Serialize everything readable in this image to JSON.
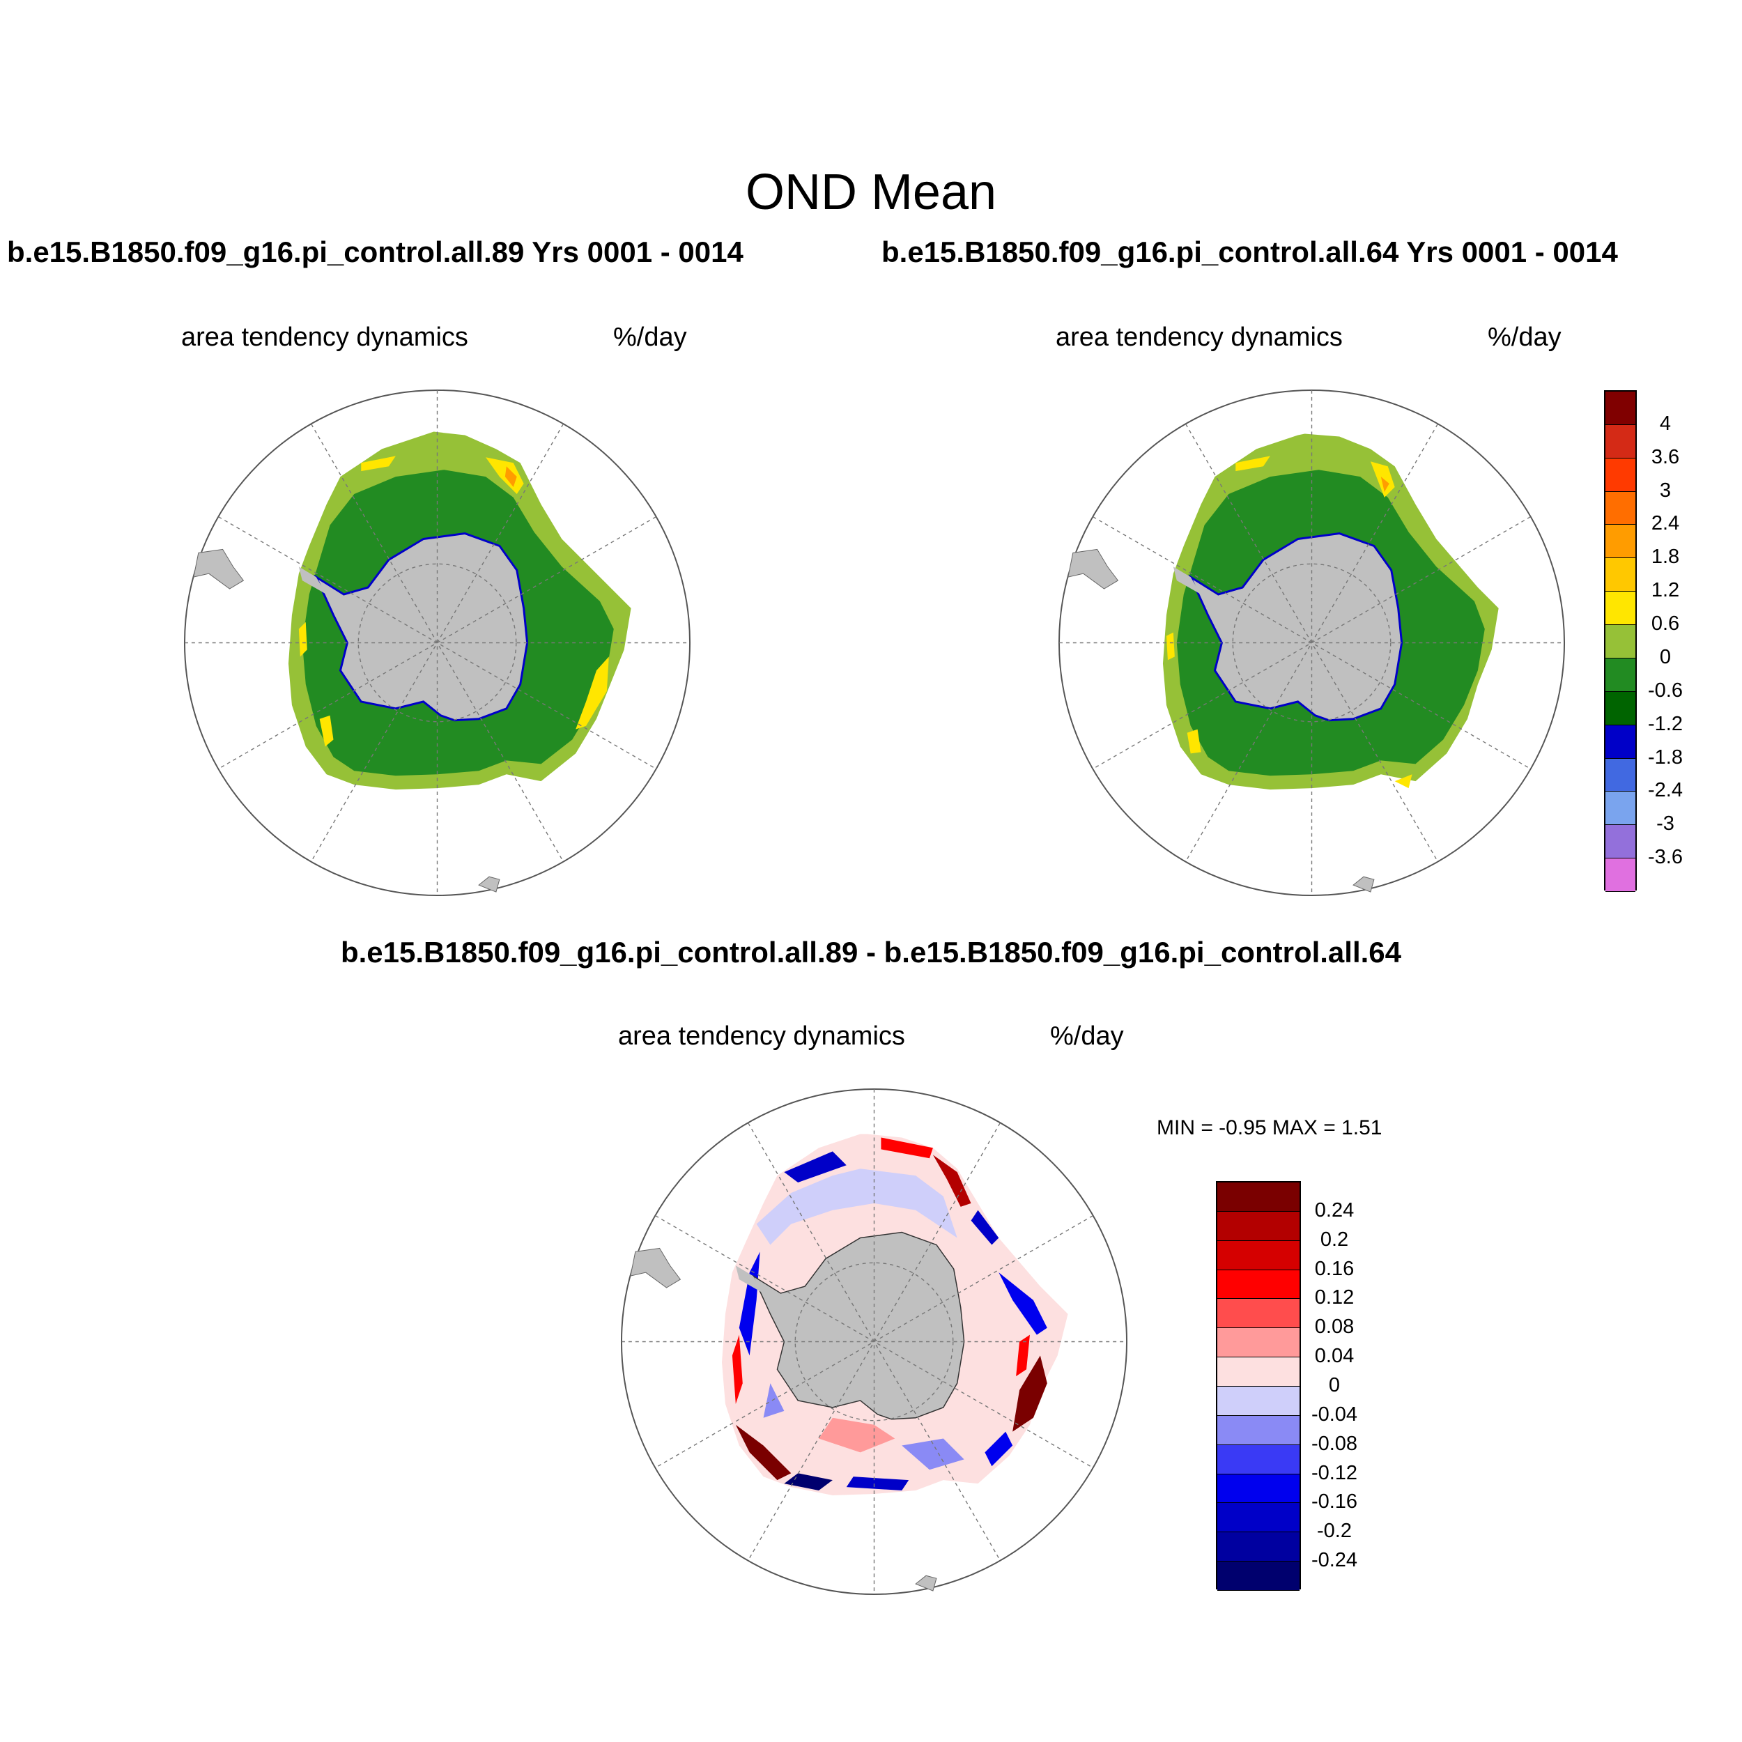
{
  "figure": {
    "title": "OND Mean",
    "left_title": "b.e15.B1850.f09_g16.pi_control.all.89  Yrs 0001 - 0014",
    "right_title": "b.e15.B1850.f09_g16.pi_control.all.64  Yrs 0001 - 0014",
    "diff_title": "b.e15.B1850.f09_g16.pi_control.all.89 - b.e15.B1850.f09_g16.pi_control.all.64"
  },
  "panels": {
    "left": {
      "variable": "area tendency dynamics",
      "units": "%/day"
    },
    "right": {
      "variable": "area tendency dynamics",
      "units": "%/day"
    },
    "diff": {
      "variable": "area tendency dynamics",
      "units": "%/day",
      "min_max": "MIN =  -0.95 MAX =   1.51"
    }
  },
  "colorbar_main": {
    "labels": [
      "4",
      "3.6",
      "3",
      "2.4",
      "1.8",
      "1.2",
      "0.6",
      "0",
      "-0.6",
      "-1.2",
      "-1.8",
      "-2.4",
      "-3",
      "-3.6"
    ],
    "colors": [
      "#800000",
      "#d42a16",
      "#ff3a00",
      "#ff6e00",
      "#ff9c00",
      "#ffc800",
      "#ffe600",
      "#96c137",
      "#228b22",
      "#006400",
      "#0000c8",
      "#4169e1",
      "#7aa4ee",
      "#9370db",
      "#e070e0"
    ]
  },
  "colorbar_diff": {
    "labels": [
      "0.24",
      "0.2",
      "0.16",
      "0.12",
      "0.08",
      "0.04",
      "0",
      "-0.04",
      "-0.08",
      "-0.12",
      "-0.16",
      "-0.2",
      "-0.24"
    ],
    "colors": [
      "#7a0000",
      "#b30000",
      "#d50000",
      "#ff0000",
      "#ff4d4d",
      "#ff9a9a",
      "#fde0e0",
      "#cfcffa",
      "#8a8af5",
      "#3a3af5",
      "#0000ee",
      "#0000c8",
      "#0000a0",
      "#00006e"
    ]
  },
  "map_colors": {
    "land": "#c0c0c0",
    "ocean_line": "#555555",
    "grid": "#777777",
    "outer_ice_main": "#96c137",
    "inner_ice_main": "#228b22",
    "positive_patch": "#ffe600",
    "strong_positive_patch": "#ff9c00",
    "coast_edge": "#0000c8",
    "diff_base": "#ffffff",
    "diff_pos": "#ff0000",
    "diff_neg": "#0000ee",
    "diff_pale_pos": "#ff9a9a",
    "diff_pale_neg": "#8a8af5",
    "diff_dark_pos": "#7a0000",
    "diff_dark_neg": "#00006e"
  }
}
